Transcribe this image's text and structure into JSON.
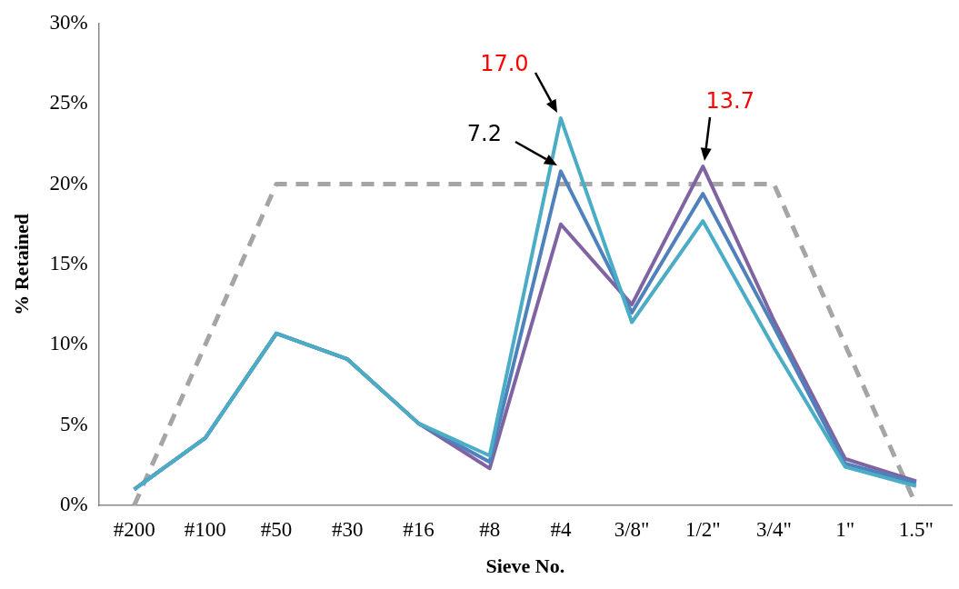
{
  "chart_data": {
    "type": "line",
    "xlabel": "Sieve No.",
    "ylabel": "% Retained",
    "categories": [
      "#200",
      "#100",
      "#50",
      "#30",
      "#16",
      "#8",
      "#4",
      "3/8\"",
      "1/2\"",
      "3/4\"",
      "1\"",
      "1.5\""
    ],
    "series": [
      {
        "color": "#a5a5a5",
        "line_style": "dashed",
        "values": [
          0,
          10,
          20,
          20,
          20,
          20,
          20,
          20,
          20,
          20,
          10,
          0
        ]
      },
      {
        "color": "#8064a2",
        "values": [
          1.0,
          4.2,
          10.7,
          9.1,
          5.1,
          2.3,
          17.5,
          12.5,
          21.1,
          11.5,
          2.9,
          1.5
        ]
      },
      {
        "color": "#4f81bd",
        "values": [
          1.0,
          4.2,
          10.7,
          9.1,
          5.1,
          2.7,
          20.8,
          12.0,
          19.4,
          11.1,
          2.6,
          1.4
        ]
      },
      {
        "color": "#4bacc6",
        "values": [
          1.0,
          4.2,
          10.7,
          9.1,
          5.1,
          3.1,
          24.1,
          11.4,
          17.7,
          9.8,
          2.4,
          1.2
        ]
      }
    ],
    "ylim": [
      0,
      30
    ],
    "yticks": [
      {
        "value": 0,
        "label": "0%"
      },
      {
        "value": 5,
        "label": "5%"
      },
      {
        "value": 10,
        "label": "10%"
      },
      {
        "value": 15,
        "label": "15%"
      },
      {
        "value": 20,
        "label": "20%"
      },
      {
        "value": 25,
        "label": "25%"
      },
      {
        "value": 30,
        "label": "30%"
      }
    ],
    "grid": false,
    "legend": false,
    "marker": "none",
    "annotations": [
      {
        "text": "17.0",
        "x": "#4",
        "y": 24.1
      },
      {
        "text": "7.2",
        "x": "#4",
        "y": 20.8
      },
      {
        "text": "13.7",
        "x": "1/2\"",
        "y": 21.1
      }
    ]
  }
}
